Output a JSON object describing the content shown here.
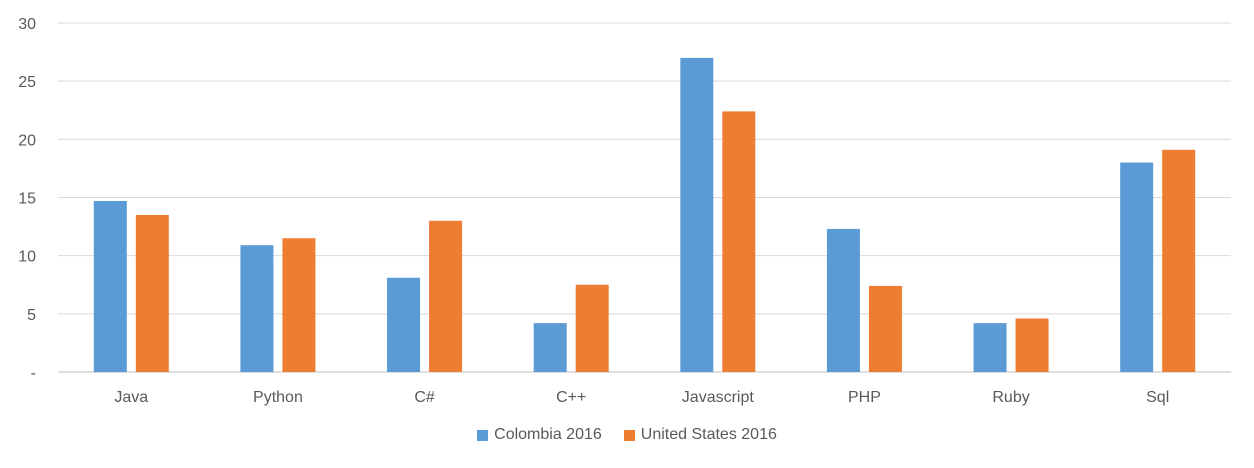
{
  "chart_data": {
    "type": "bar",
    "categories": [
      "Java",
      "Python",
      "C#",
      "C++",
      "Javascript",
      "PHP",
      "Ruby",
      "Sql"
    ],
    "series": [
      {
        "name": "Colombia 2016",
        "color": "#5B9BD5",
        "values": [
          14.7,
          10.9,
          8.1,
          4.2,
          27.0,
          12.3,
          4.2,
          18.0
        ]
      },
      {
        "name": "United States 2016",
        "color": "#ED7D31",
        "values": [
          13.5,
          11.5,
          13.0,
          7.5,
          22.4,
          7.4,
          4.6,
          19.1
        ]
      }
    ],
    "yticks": [
      "-",
      "5",
      "10",
      "15",
      "20",
      "25",
      "30"
    ],
    "ylim": [
      0,
      30
    ],
    "grid": true,
    "legend": "bottom",
    "title": "",
    "xlabel": "",
    "ylabel": ""
  }
}
